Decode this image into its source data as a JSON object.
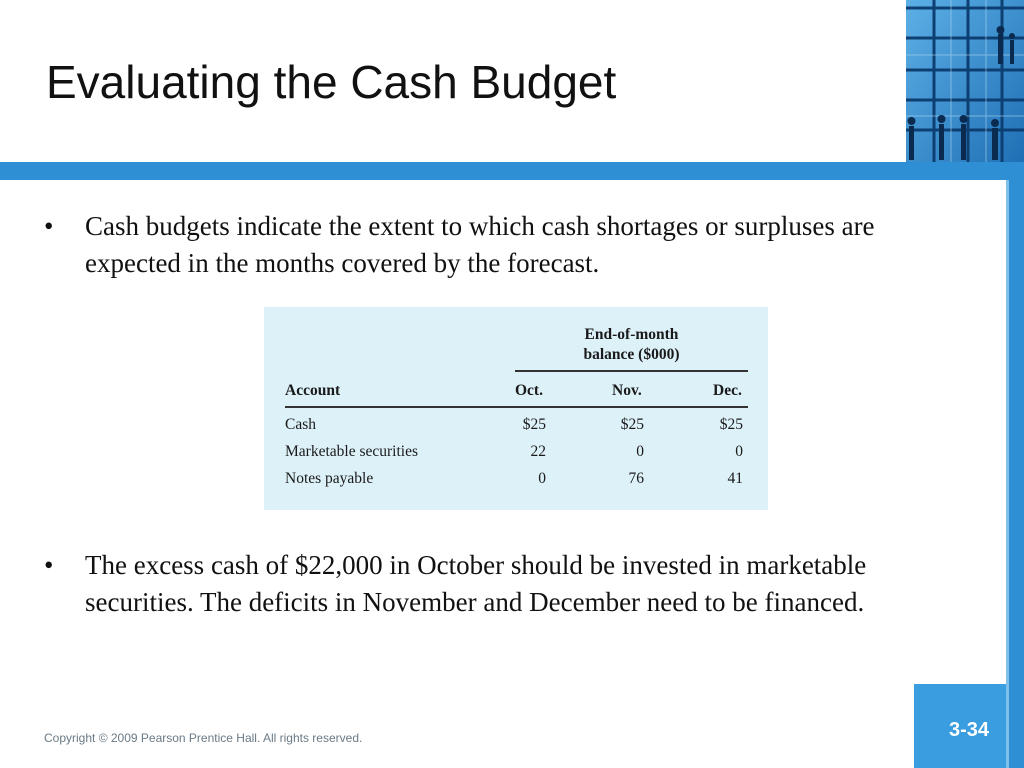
{
  "slide": {
    "title": "Evaluating the Cash Budget",
    "bullets": [
      {
        "marker": "•",
        "text": "Cash budgets indicate the extent to which cash shortages or surpluses are expected in the months covered by the forecast."
      },
      {
        "marker": "•",
        "text": "The excess cash of $22,000 in October should be invested in marketable securities.  The deficits in November and December need to be financed."
      }
    ],
    "copyright": "Copyright © 2009 Pearson Prentice Hall. All rights reserved.",
    "slide_number": "3-34"
  },
  "table": {
    "group_header_line1": "End-of-month",
    "group_header_line2": "balance ($000)",
    "columns": [
      "Account",
      "Oct.",
      "Nov.",
      "Dec."
    ],
    "rows": [
      {
        "account": "Cash",
        "oct": "$25",
        "nov": "$25",
        "dec": "$25"
      },
      {
        "account": "Marketable securities",
        "oct": "22",
        "nov": "0",
        "dec": "0"
      },
      {
        "account": "Notes payable",
        "oct": "0",
        "nov": "76",
        "dec": "41"
      }
    ]
  },
  "theme": {
    "accent": "#2f8fd4",
    "table_bg": "#ddf1f8"
  },
  "image": {
    "description_icon": "building-silhouette-photo"
  }
}
